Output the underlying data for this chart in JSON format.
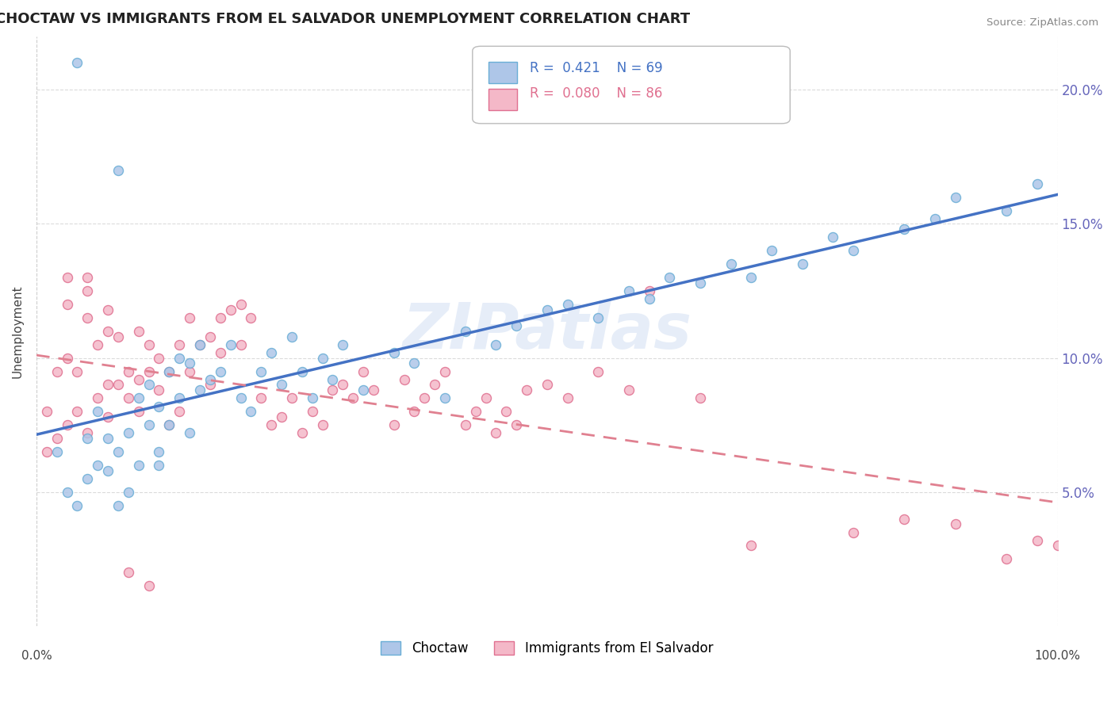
{
  "title": "CHOCTAW VS IMMIGRANTS FROM EL SALVADOR UNEMPLOYMENT CORRELATION CHART",
  "source": "Source: ZipAtlas.com",
  "ylabel": "Unemployment",
  "xlim": [
    0,
    100
  ],
  "ylim": [
    0,
    22
  ],
  "legend_r1": "R =  0.421",
  "legend_n1": "N = 69",
  "legend_r2": "R =  0.080",
  "legend_n2": "N = 86",
  "watermark": "ZIPatlas",
  "choctaw_color": "#aec6e8",
  "choctaw_edge": "#6aaed6",
  "elsalvador_color": "#f4b8c8",
  "elsalvador_edge": "#e07090",
  "line_choctaw": "#4472c4",
  "line_elsalvador": "#e08090",
  "background_color": "#ffffff",
  "choctaw_x": [
    2,
    3,
    4,
    5,
    5,
    6,
    6,
    7,
    7,
    8,
    8,
    9,
    9,
    10,
    10,
    11,
    11,
    12,
    12,
    13,
    13,
    14,
    14,
    15,
    15,
    16,
    16,
    17,
    18,
    19,
    20,
    21,
    22,
    23,
    24,
    25,
    26,
    27,
    28,
    29,
    30,
    32,
    35,
    37,
    40,
    42,
    45,
    47,
    50,
    52,
    55,
    58,
    60,
    62,
    65,
    68,
    70,
    72,
    75,
    78,
    80,
    85,
    88,
    90,
    95,
    98,
    4,
    8,
    12
  ],
  "choctaw_y": [
    6.5,
    5.0,
    4.5,
    5.5,
    7.0,
    6.0,
    8.0,
    7.0,
    5.8,
    6.5,
    4.5,
    7.2,
    5.0,
    8.5,
    6.0,
    9.0,
    7.5,
    8.2,
    6.0,
    7.5,
    9.5,
    10.0,
    8.5,
    9.8,
    7.2,
    8.8,
    10.5,
    9.2,
    9.5,
    10.5,
    8.5,
    8.0,
    9.5,
    10.2,
    9.0,
    10.8,
    9.5,
    8.5,
    10.0,
    9.2,
    10.5,
    8.8,
    10.2,
    9.8,
    8.5,
    11.0,
    10.5,
    11.2,
    11.8,
    12.0,
    11.5,
    12.5,
    12.2,
    13.0,
    12.8,
    13.5,
    13.0,
    14.0,
    13.5,
    14.5,
    14.0,
    14.8,
    15.2,
    16.0,
    15.5,
    16.5,
    21.0,
    17.0,
    6.5
  ],
  "salvador_x": [
    1,
    1,
    2,
    2,
    3,
    3,
    3,
    4,
    4,
    5,
    5,
    5,
    6,
    6,
    7,
    7,
    7,
    8,
    8,
    9,
    9,
    10,
    10,
    10,
    11,
    11,
    12,
    12,
    13,
    13,
    14,
    14,
    15,
    15,
    16,
    17,
    17,
    18,
    18,
    19,
    20,
    20,
    21,
    22,
    23,
    24,
    25,
    26,
    27,
    28,
    29,
    30,
    31,
    32,
    33,
    35,
    36,
    37,
    38,
    39,
    40,
    42,
    43,
    44,
    45,
    46,
    47,
    48,
    50,
    52,
    55,
    58,
    60,
    65,
    70,
    80,
    85,
    90,
    95,
    98,
    100,
    3,
    5,
    7,
    9,
    11
  ],
  "salvador_y": [
    6.5,
    8.0,
    7.0,
    9.5,
    7.5,
    10.0,
    12.0,
    8.0,
    9.5,
    7.2,
    11.5,
    13.0,
    8.5,
    10.5,
    7.8,
    9.0,
    11.0,
    9.0,
    10.8,
    8.5,
    9.5,
    9.2,
    8.0,
    11.0,
    9.5,
    10.5,
    10.0,
    8.8,
    9.5,
    7.5,
    10.5,
    8.0,
    9.5,
    11.5,
    10.5,
    9.0,
    10.8,
    11.5,
    10.2,
    11.8,
    10.5,
    12.0,
    11.5,
    8.5,
    7.5,
    7.8,
    8.5,
    7.2,
    8.0,
    7.5,
    8.8,
    9.0,
    8.5,
    9.5,
    8.8,
    7.5,
    9.2,
    8.0,
    8.5,
    9.0,
    9.5,
    7.5,
    8.0,
    8.5,
    7.2,
    8.0,
    7.5,
    8.8,
    9.0,
    8.5,
    9.5,
    8.8,
    12.5,
    8.5,
    3.0,
    3.5,
    4.0,
    3.8,
    2.5,
    3.2,
    3.0,
    13.0,
    12.5,
    11.8,
    2.0,
    1.5
  ]
}
